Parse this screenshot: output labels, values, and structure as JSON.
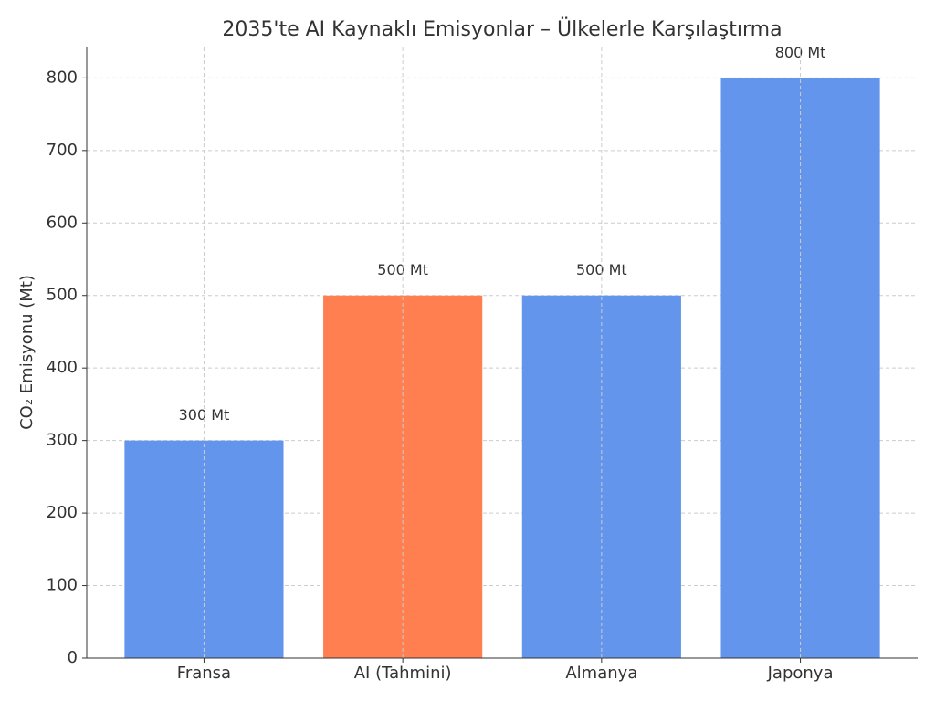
{
  "chart_data": {
    "type": "bar",
    "title": "2035'te AI Kaynaklı Emisyonlar – Ülkelerle Karşılaştırma",
    "y_label": "CO₂ Emisyonu (Mt)",
    "categories": [
      "Fransa",
      "AI (Tahmini)",
      "Almanya",
      "Japonya"
    ],
    "values": [
      300,
      500,
      500,
      800
    ],
    "value_labels": [
      "300 Mt",
      "500 Mt",
      "500 Mt",
      "800 Mt"
    ],
    "colors": [
      "#6495ed",
      "#ff7f50",
      "#6495ed",
      "#6495ed"
    ],
    "ylim": [
      0,
      842
    ],
    "yticks": [
      0,
      100,
      200,
      300,
      400,
      500,
      600,
      700,
      800
    ],
    "grid": true
  }
}
